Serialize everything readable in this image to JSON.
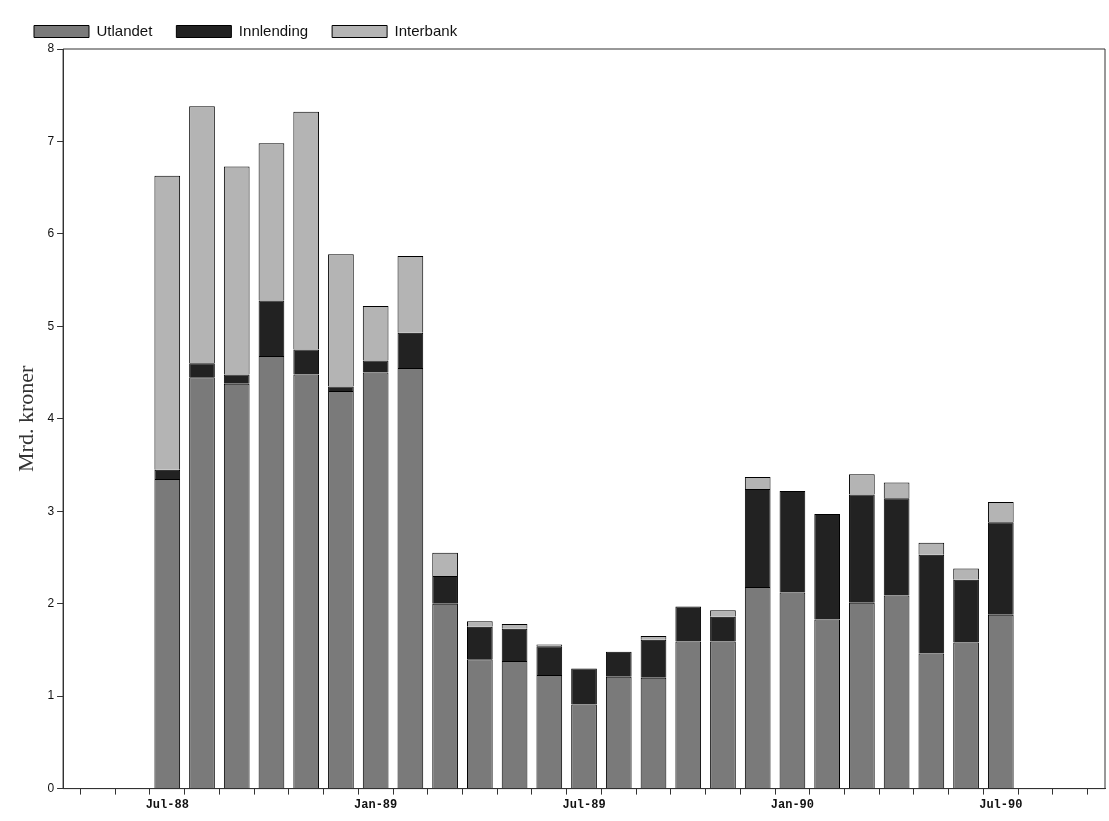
{
  "chart_data": {
    "type": "bar",
    "stacked": true,
    "ylabel": "Mrd. kroner",
    "categories": [
      null,
      null,
      null,
      "Jul-88",
      null,
      null,
      null,
      null,
      null,
      "Jan-89",
      null,
      null,
      null,
      null,
      null,
      "Jul-89",
      null,
      null,
      null,
      null,
      null,
      "Jan-90",
      null,
      null,
      null,
      null,
      null,
      "Jul-90",
      null,
      null,
      null
    ],
    "series": [
      {
        "name": "Utlandet",
        "color": "#7a7a7a",
        "values": [
          null,
          null,
          null,
          3.35,
          4.45,
          4.38,
          4.68,
          4.48,
          4.3,
          4.5,
          4.55,
          2.0,
          1.4,
          1.38,
          1.23,
          0.91,
          1.21,
          1.2,
          1.59,
          1.59,
          2.18,
          2.12,
          1.83,
          2.01,
          2.09,
          1.46,
          1.58,
          1.88,
          null,
          null,
          null
        ]
      },
      {
        "name": "Innlending",
        "color": "#222222",
        "values": [
          null,
          null,
          null,
          0.1,
          0.15,
          0.1,
          0.6,
          0.27,
          0.05,
          0.13,
          0.38,
          0.3,
          0.35,
          0.35,
          0.31,
          0.39,
          0.27,
          0.41,
          0.38,
          0.27,
          1.06,
          1.1,
          1.14,
          1.17,
          1.05,
          1.07,
          0.68,
          1.0,
          null,
          null,
          null
        ]
      },
      {
        "name": "Interbank",
        "color": "#b4b4b4",
        "values": [
          null,
          null,
          null,
          3.18,
          2.78,
          2.25,
          1.7,
          2.57,
          1.43,
          0.59,
          0.83,
          0.25,
          0.06,
          0.05,
          0.02,
          null,
          null,
          0.04,
          null,
          0.07,
          0.13,
          null,
          null,
          0.22,
          0.17,
          0.13,
          0.12,
          0.22,
          null,
          null,
          null
        ]
      }
    ],
    "ylim": [
      0,
      8
    ],
    "yticks": [
      0,
      1,
      2,
      3,
      4,
      5,
      6,
      7,
      8
    ],
    "grid": false,
    "legend": "top left"
  }
}
